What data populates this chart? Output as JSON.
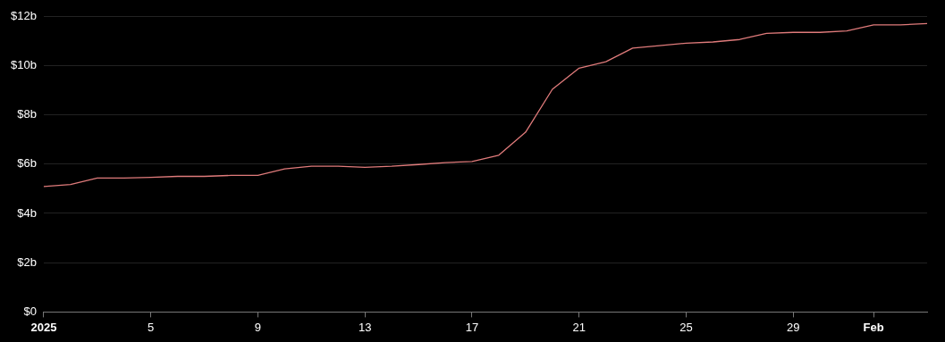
{
  "chart_data": {
    "type": "line",
    "x": [
      "2025-01-01",
      "2025-01-02",
      "2025-01-03",
      "2025-01-04",
      "2025-01-05",
      "2025-01-06",
      "2025-01-07",
      "2025-01-08",
      "2025-01-09",
      "2025-01-10",
      "2025-01-11",
      "2025-01-12",
      "2025-01-13",
      "2025-01-14",
      "2025-01-15",
      "2025-01-16",
      "2025-01-17",
      "2025-01-18",
      "2025-01-19",
      "2025-01-20",
      "2025-01-21",
      "2025-01-22",
      "2025-01-23",
      "2025-01-24",
      "2025-01-25",
      "2025-01-26",
      "2025-01-27",
      "2025-01-28",
      "2025-01-29",
      "2025-01-30",
      "2025-01-31",
      "2025-02-01",
      "2025-02-02",
      "2025-02-03"
    ],
    "series": [
      {
        "color": "#e07b7b",
        "values": [
          5.09,
          5.17,
          5.43,
          5.43,
          5.46,
          5.5,
          5.5,
          5.54,
          5.54,
          5.8,
          5.91,
          5.91,
          5.87,
          5.91,
          5.98,
          6.06,
          6.1,
          6.36,
          7.29,
          9.03,
          9.89,
          10.15,
          10.7,
          10.8,
          10.9,
          10.95,
          11.05,
          11.3,
          11.34,
          11.34,
          11.4,
          11.64,
          11.64,
          11.7
        ]
      }
    ],
    "xlim": [
      "2025-01-01",
      "2025-02-03"
    ],
    "xticks": [
      {
        "value": "2025-01-01",
        "label": "2025"
      },
      {
        "value": "2025-01-05",
        "label": "5"
      },
      {
        "value": "2025-01-09",
        "label": "9"
      },
      {
        "value": "2025-01-13",
        "label": "13"
      },
      {
        "value": "2025-01-17",
        "label": "17"
      },
      {
        "value": "2025-01-21",
        "label": "21"
      },
      {
        "value": "2025-01-25",
        "label": "25"
      },
      {
        "value": "2025-01-29",
        "label": "29"
      },
      {
        "value": "2025-02-01",
        "label": "Feb"
      }
    ],
    "ylim": [
      0,
      12
    ],
    "yticks": [
      {
        "value": 0,
        "label": "$0"
      },
      {
        "value": 2,
        "label": "$2b"
      },
      {
        "value": 4,
        "label": "$4b"
      },
      {
        "value": 6,
        "label": "$6b"
      },
      {
        "value": 8,
        "label": "$8b"
      },
      {
        "value": 10,
        "label": "$10b"
      },
      {
        "value": 12,
        "label": "$12b"
      }
    ],
    "grid": "y",
    "marker": "none",
    "line_style": "solid",
    "legend": false
  }
}
